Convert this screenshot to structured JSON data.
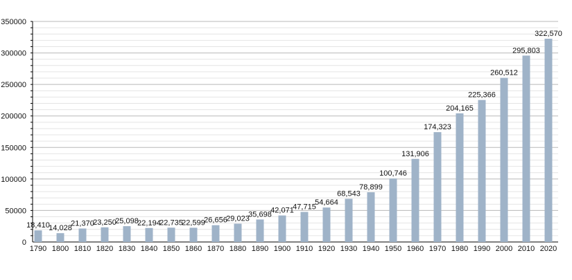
{
  "chart_data": {
    "type": "bar",
    "title": "",
    "xlabel": "",
    "ylabel": "",
    "ylim": [
      0,
      350000
    ],
    "yticks": [
      0,
      50000,
      100000,
      150000,
      200000,
      250000,
      300000,
      350000
    ],
    "grid": true,
    "bar_color": "#9fb3c8",
    "categories": [
      "1790",
      "1800",
      "1810",
      "1820",
      "1830",
      "1840",
      "1850",
      "1860",
      "1870",
      "1880",
      "1890",
      "1900",
      "1910",
      "1920",
      "1930",
      "1940",
      "1950",
      "1960",
      "1970",
      "1980",
      "1990",
      "2000",
      "2010",
      "2020"
    ],
    "values": [
      18410,
      14028,
      21370,
      23250,
      25098,
      22194,
      22735,
      22599,
      26656,
      29023,
      35698,
      42071,
      47715,
      54664,
      68543,
      78899,
      100746,
      131906,
      174323,
      204165,
      225366,
      260512,
      295803,
      322570
    ],
    "data_labels": [
      "18,410",
      "14,028",
      "21,370",
      "23,250",
      "25,098",
      "22,194",
      "22,735",
      "22,599",
      "26,656",
      "29,023",
      "35,698",
      "42,071",
      "47,715",
      "54,664",
      "68,543",
      "78,899",
      "100,746",
      "131,906",
      "174,323",
      "204,165",
      "225,366",
      "260,512",
      "295,803",
      "322,570"
    ]
  }
}
